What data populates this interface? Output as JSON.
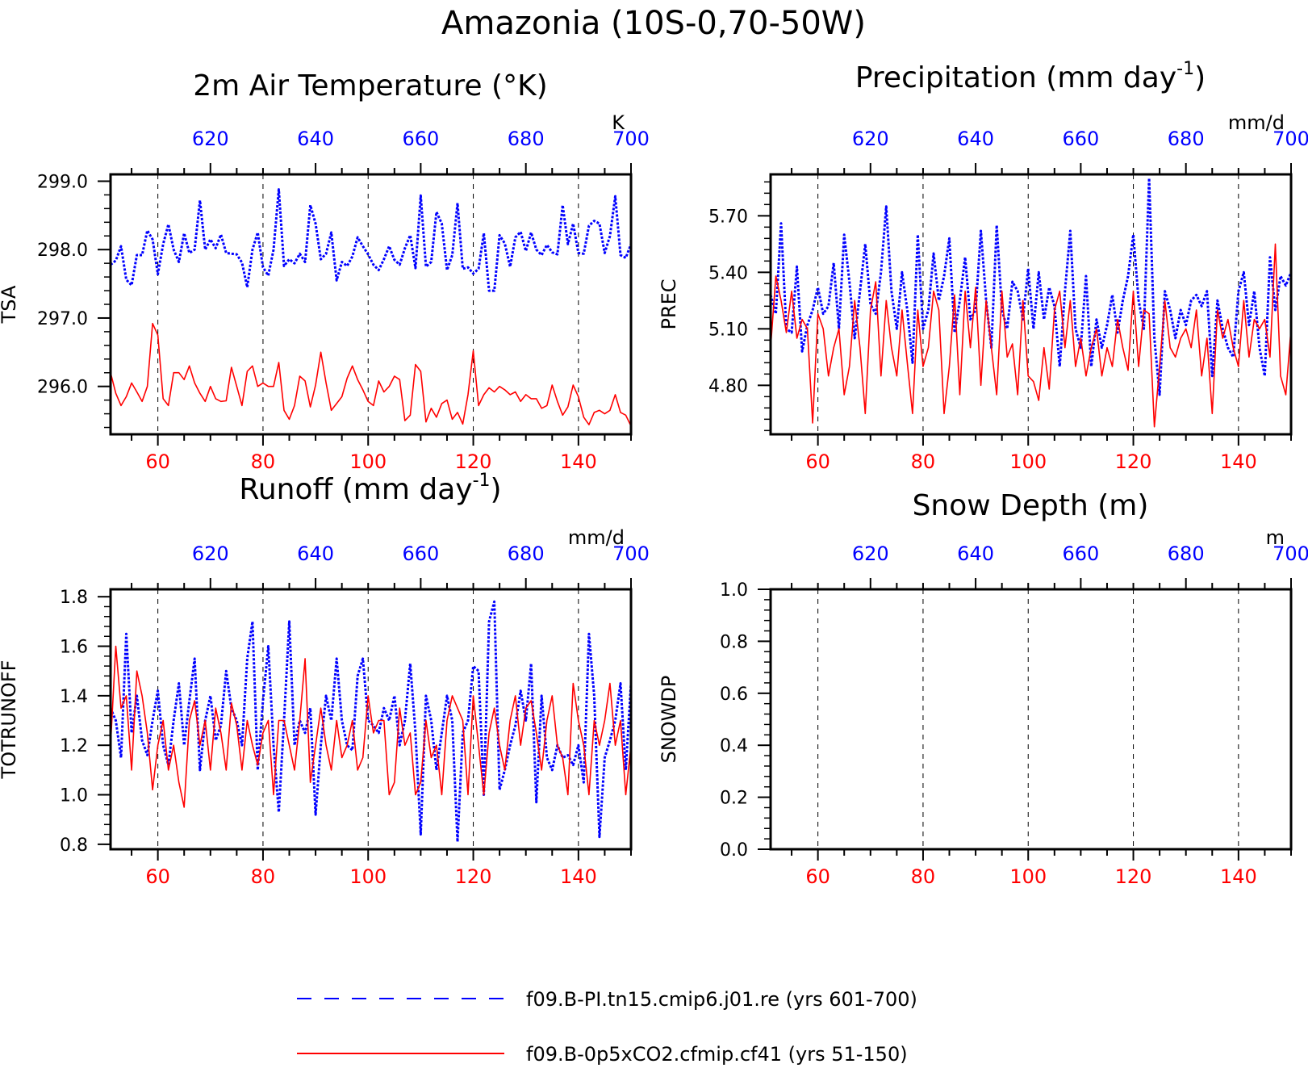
{
  "figure": {
    "title": "Amazonia (10S-0,70-50W)",
    "legend": [
      {
        "label": "f09.B-PI.tn15.cmip6.j01.re (yrs 601-700)",
        "color": "#0000ff",
        "style": "dashed"
      },
      {
        "label": "f09.B-0p5xCO2.cfmip.cf41 (yrs 51-150)",
        "color": "#ff0000",
        "style": "solid"
      }
    ]
  },
  "colors": {
    "top_axis": "#0000ff",
    "bottom_axis": "#ff0000",
    "frame": "#000000"
  },
  "chart_data": [
    {
      "type": "line",
      "title": "2m Air Temperature (°K)",
      "ylabel": "TSA",
      "unit": "K",
      "ylim": [
        295.3,
        299.1
      ],
      "yticks": [
        "299.0",
        "298.0",
        "297.0",
        "296.0"
      ],
      "ytick_values": [
        299.0,
        298.0,
        297.0,
        296.0
      ],
      "x_bottom": {
        "range": [
          51,
          150
        ],
        "ticks": [
          60,
          80,
          100,
          120,
          140
        ]
      },
      "x_top": {
        "range": [
          601,
          700
        ],
        "ticks": [
          620,
          640,
          660,
          680,
          700
        ]
      },
      "grid": "vertical dashed at x ticks",
      "series": [
        {
          "name": "f09.B-PI.tn15.cmip6.j01.re (yrs 601-700)",
          "axis": "top",
          "values": [
            297.78,
            297.84,
            298.05,
            297.56,
            297.48,
            297.92,
            297.92,
            298.28,
            298.15,
            297.64,
            298.08,
            298.37,
            298.0,
            297.82,
            298.24,
            297.95,
            298.0,
            298.72,
            298.0,
            298.15,
            298.02,
            298.22,
            297.95,
            297.94,
            297.93,
            297.81,
            297.45,
            298.0,
            298.25,
            297.74,
            297.62,
            298.0,
            298.88,
            297.76,
            297.86,
            297.8,
            297.94,
            297.82,
            298.65,
            298.38,
            297.86,
            297.94,
            298.25,
            297.55,
            297.82,
            297.76,
            297.9,
            298.18,
            298.05,
            297.93,
            297.78,
            297.7,
            297.86,
            298.05,
            297.85,
            297.78,
            298.02,
            298.21,
            297.73,
            298.79,
            297.75,
            297.82,
            298.55,
            298.38,
            297.7,
            297.92,
            298.68,
            297.72,
            297.74,
            297.65,
            297.72,
            298.24,
            297.4,
            297.4,
            298.21,
            298.09,
            297.75,
            298.18,
            298.26,
            297.98,
            298.25,
            298.0,
            297.92,
            298.07,
            297.96,
            297.93,
            298.65,
            298.08,
            298.38,
            297.95,
            297.94,
            298.35,
            298.42,
            298.38,
            297.95,
            298.2,
            298.78,
            297.92,
            297.88,
            298.08
          ]
        },
        {
          "name": "f09.B-0p5xCO2.cfmip.cf41 (yrs 51-150)",
          "axis": "bottom",
          "values": [
            296.2,
            295.9,
            295.72,
            295.85,
            296.05,
            295.92,
            295.78,
            296.0,
            296.92,
            296.75,
            295.82,
            295.72,
            296.2,
            296.2,
            296.1,
            296.3,
            296.05,
            295.9,
            295.78,
            296.0,
            295.82,
            295.78,
            295.79,
            296.28,
            296.0,
            295.72,
            296.22,
            296.3,
            296.0,
            296.05,
            296.0,
            296.0,
            296.35,
            295.65,
            295.52,
            295.72,
            296.15,
            296.08,
            295.7,
            296.02,
            296.5,
            296.05,
            295.65,
            295.75,
            295.85,
            296.12,
            296.3,
            296.1,
            295.95,
            295.78,
            295.72,
            296.08,
            295.92,
            296.0,
            296.15,
            296.1,
            295.5,
            295.58,
            296.32,
            296.22,
            295.48,
            295.68,
            295.55,
            295.75,
            295.8,
            295.52,
            295.62,
            295.45,
            295.88,
            296.52,
            295.72,
            295.88,
            295.98,
            295.92,
            296.0,
            295.95,
            295.88,
            295.92,
            295.78,
            295.88,
            295.82,
            295.82,
            295.68,
            295.72,
            296.02,
            295.78,
            295.58,
            295.7,
            296.02,
            295.85,
            295.55,
            295.44,
            295.62,
            295.65,
            295.6,
            295.65,
            295.88,
            295.62,
            295.58,
            295.42
          ]
        }
      ]
    },
    {
      "type": "line",
      "title": "Precipitation (mm day⁻¹)",
      "ylabel": "PREC",
      "unit": "mm/d",
      "ylim": [
        4.54,
        5.92
      ],
      "yticks": [
        "5.70",
        "5.40",
        "5.10",
        "4.80"
      ],
      "ytick_values": [
        5.7,
        5.4,
        5.1,
        4.8
      ],
      "x_bottom": {
        "range": [
          51,
          150
        ],
        "ticks": [
          60,
          80,
          100,
          120,
          140
        ]
      },
      "x_top": {
        "range": [
          601,
          700
        ],
        "ticks": [
          620,
          640,
          660,
          680,
          700
        ]
      },
      "grid": "vertical dashed at x ticks",
      "series": [
        {
          "name": "f09.B-PI.tn15.cmip6.j01.re (yrs 601-700)",
          "axis": "top",
          "values": [
            5.28,
            5.18,
            5.66,
            5.1,
            5.08,
            5.43,
            4.98,
            5.12,
            5.2,
            5.32,
            5.18,
            5.22,
            5.45,
            5.1,
            5.6,
            5.35,
            5.05,
            5.3,
            5.55,
            5.23,
            5.18,
            5.4,
            5.75,
            5.3,
            5.1,
            5.4,
            5.2,
            4.92,
            5.6,
            5.1,
            5.2,
            5.5,
            5.25,
            5.38,
            5.58,
            5.08,
            5.25,
            5.48,
            5.15,
            5.2,
            5.62,
            5.25,
            5.0,
            5.65,
            5.2,
            5.1,
            5.35,
            5.3,
            5.15,
            5.42,
            5.1,
            5.4,
            5.15,
            5.32,
            5.22,
            4.9,
            5.3,
            5.62,
            5.1,
            5.0,
            5.38,
            4.9,
            5.15,
            5.0,
            5.12,
            5.28,
            5.08,
            5.25,
            5.38,
            5.6,
            5.25,
            5.1,
            5.9,
            5.05,
            4.75,
            5.3,
            5.2,
            5.05,
            5.2,
            5.12,
            5.25,
            5.28,
            5.22,
            5.3,
            4.85,
            5.25,
            5.1,
            5.0,
            4.95,
            5.3,
            5.4,
            5.12,
            5.3,
            5.0,
            4.85,
            5.48,
            5.2,
            5.38,
            5.33,
            5.4
          ]
        },
        {
          "name": "f09.B-0p5xCO2.cfmip.cf41 (yrs 51-150)",
          "axis": "bottom",
          "values": [
            5.0,
            5.38,
            5.25,
            5.08,
            5.3,
            5.05,
            5.15,
            5.1,
            4.6,
            5.18,
            5.1,
            4.85,
            5.0,
            5.1,
            4.75,
            4.9,
            5.25,
            5.0,
            4.65,
            5.2,
            5.35,
            4.85,
            5.25,
            5.0,
            4.85,
            5.2,
            4.92,
            4.65,
            5.2,
            4.9,
            5.0,
            5.3,
            5.2,
            4.65,
            4.9,
            5.28,
            4.75,
            5.3,
            5.0,
            5.32,
            4.8,
            5.25,
            5.0,
            4.75,
            5.3,
            4.95,
            5.02,
            4.75,
            5.25,
            4.85,
            4.82,
            4.72,
            5.0,
            4.78,
            5.2,
            5.3,
            5.0,
            5.25,
            4.9,
            5.05,
            4.85,
            5.0,
            5.1,
            4.85,
            5.0,
            4.9,
            5.15,
            5.0,
            4.88,
            5.3,
            4.9,
            5.2,
            5.18,
            4.58,
            4.9,
            5.25,
            5.0,
            4.95,
            5.05,
            5.1,
            5.0,
            5.2,
            4.85,
            5.05,
            4.65,
            5.2,
            5.05,
            5.15,
            5.0,
            4.9,
            5.25,
            4.95,
            5.15,
            5.1,
            5.15,
            4.95,
            5.55,
            4.85,
            4.75,
            5.1
          ]
        }
      ]
    },
    {
      "type": "line",
      "title": "Runoff (mm day⁻¹)",
      "ylabel": "TOTRUNOFF",
      "unit": "mm/d",
      "ylim": [
        0.78,
        1.83
      ],
      "yticks": [
        "1.8",
        "1.6",
        "1.4",
        "1.2",
        "1.0",
        "0.8"
      ],
      "ytick_values": [
        1.8,
        1.6,
        1.4,
        1.2,
        1.0,
        0.8
      ],
      "x_bottom": {
        "range": [
          51,
          150
        ],
        "ticks": [
          60,
          80,
          100,
          120,
          140
        ]
      },
      "x_top": {
        "range": [
          601,
          700
        ],
        "ticks": [
          620,
          640,
          660,
          680,
          700
        ]
      },
      "grid": "vertical dashed at x ticks",
      "series": [
        {
          "name": "f09.B-PI.tn15.cmip6.j01.re (yrs 601-700)",
          "axis": "top",
          "values": [
            1.35,
            1.3,
            1.15,
            1.65,
            1.25,
            1.4,
            1.22,
            1.16,
            1.3,
            1.42,
            1.2,
            1.12,
            1.3,
            1.45,
            1.2,
            1.38,
            1.55,
            1.1,
            1.3,
            1.4,
            1.22,
            1.28,
            1.5,
            1.35,
            1.3,
            1.2,
            1.55,
            1.7,
            1.1,
            1.38,
            1.6,
            1.2,
            0.93,
            1.3,
            1.7,
            1.2,
            1.3,
            1.25,
            1.35,
            0.92,
            1.2,
            1.4,
            1.3,
            1.55,
            1.3,
            1.2,
            1.18,
            1.48,
            1.55,
            1.3,
            1.28,
            1.25,
            1.35,
            1.3,
            1.4,
            1.2,
            1.3,
            1.53,
            1.25,
            0.84,
            1.4,
            1.3,
            1.1,
            1.25,
            1.4,
            1.3,
            0.81,
            1.25,
            1.3,
            1.52,
            1.5,
            1.0,
            1.7,
            1.78,
            1.02,
            1.1,
            1.2,
            1.28,
            1.42,
            1.3,
            1.53,
            0.97,
            1.4,
            1.15,
            1.1,
            1.2,
            1.15,
            1.16,
            1.12,
            1.2,
            1.05,
            1.65,
            1.4,
            0.83,
            1.15,
            1.22,
            1.3,
            1.45,
            1.1,
            1.45
          ]
        },
        {
          "name": "f09.B-0p5xCO2.cfmip.cf41 (yrs 51-150)",
          "axis": "bottom",
          "values": [
            1.2,
            1.6,
            1.35,
            1.4,
            1.1,
            1.5,
            1.4,
            1.25,
            1.02,
            1.2,
            1.3,
            1.1,
            1.2,
            1.05,
            0.95,
            1.3,
            1.38,
            1.2,
            1.3,
            1.1,
            1.35,
            1.25,
            1.1,
            1.37,
            1.28,
            1.1,
            1.3,
            1.2,
            1.12,
            1.25,
            1.3,
            1.0,
            1.3,
            1.3,
            1.2,
            1.1,
            1.3,
            1.55,
            1.05,
            1.2,
            1.35,
            1.2,
            1.1,
            1.3,
            1.15,
            1.2,
            1.3,
            1.1,
            1.15,
            1.4,
            1.25,
            1.3,
            1.3,
            1.0,
            1.05,
            1.35,
            1.2,
            1.25,
            1.0,
            1.05,
            1.3,
            1.15,
            1.2,
            1.0,
            1.3,
            1.4,
            1.35,
            1.3,
            1.0,
            1.4,
            1.2,
            1.0,
            1.25,
            1.35,
            1.2,
            1.1,
            1.3,
            1.4,
            1.2,
            1.35,
            1.38,
            1.25,
            1.1,
            1.3,
            1.4,
            1.2,
            1.15,
            1.0,
            1.45,
            1.3,
            1.2,
            1.0,
            1.3,
            1.2,
            1.3,
            1.45,
            1.2,
            1.3,
            1.0,
            1.2
          ]
        }
      ]
    },
    {
      "type": "line",
      "title": "Snow Depth (m)",
      "ylabel": "SNOWDP",
      "unit": "m",
      "ylim": [
        0.0,
        1.0
      ],
      "yticks": [
        "1.0",
        "0.8",
        "0.6",
        "0.4",
        "0.2",
        "0.0"
      ],
      "ytick_values": [
        1.0,
        0.8,
        0.6,
        0.4,
        0.2,
        0.0
      ],
      "x_bottom": {
        "range": [
          51,
          150
        ],
        "ticks": [
          60,
          80,
          100,
          120,
          140
        ]
      },
      "x_top": {
        "range": [
          601,
          700
        ],
        "ticks": [
          620,
          640,
          660,
          680,
          700
        ]
      },
      "grid": "vertical dashed at x ticks",
      "series": []
    }
  ]
}
